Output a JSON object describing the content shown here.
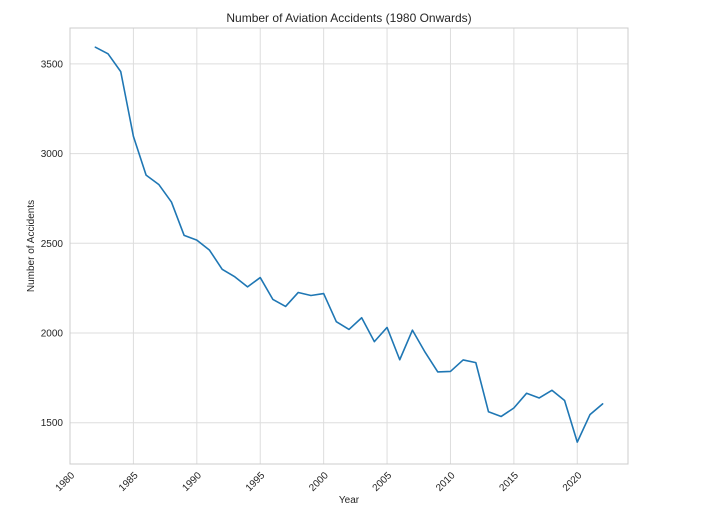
{
  "chart_data": {
    "type": "line",
    "title": "Number of Aviation Accidents (1980 Onwards)",
    "xlabel": "Year",
    "ylabel": "Number of Accidents",
    "xlim": [
      1980,
      2024
    ],
    "ylim": [
      1270,
      3700
    ],
    "xticks": [
      1980,
      1985,
      1990,
      1995,
      2000,
      2005,
      2010,
      2015,
      2020
    ],
    "xtick_labels": [
      "1980",
      "1985",
      "1990",
      "1995",
      "2000",
      "2005",
      "2010",
      "2015",
      "2020"
    ],
    "yticks": [
      1500,
      2000,
      2500,
      3000,
      3500
    ],
    "ytick_labels": [
      "1500",
      "2000",
      "2500",
      "3000",
      "3500"
    ],
    "grid": true,
    "style": "whitegrid",
    "series": [
      {
        "color": "#1f77b4",
        "x": [
          1982,
          1983,
          1984,
          1985,
          1986,
          1987,
          1988,
          1989,
          1990,
          1991,
          1992,
          1993,
          1994,
          1995,
          1996,
          1997,
          1998,
          1999,
          2000,
          2001,
          2002,
          2003,
          2004,
          2005,
          2006,
          2007,
          2008,
          2009,
          2010,
          2011,
          2012,
          2013,
          2014,
          2015,
          2016,
          2017,
          2018,
          2019,
          2020,
          2021,
          2022
        ],
        "y": [
          3593,
          3556,
          3457,
          3096,
          2880,
          2828,
          2730,
          2544,
          2518,
          2462,
          2355,
          2313,
          2257,
          2309,
          2187,
          2148,
          2226,
          2209,
          2220,
          2063,
          2020,
          2085,
          1952,
          2031,
          1851,
          2016,
          1893,
          1783,
          1786,
          1850,
          1835,
          1561,
          1535,
          1582,
          1664,
          1638,
          1681,
          1624,
          1392,
          1545,
          1605
        ]
      }
    ]
  }
}
